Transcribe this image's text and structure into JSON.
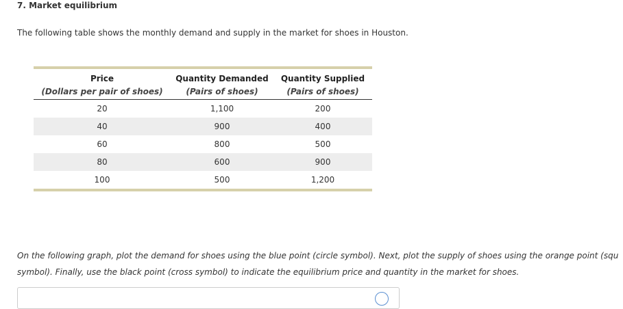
{
  "heading": "7. Market equilibrium",
  "intro": "The following table shows the monthly demand and supply in the market for shoes in Houston.",
  "table": {
    "headers": [
      "Price",
      "Quantity Demanded",
      "Quantity Supplied"
    ],
    "units": [
      "(Dollars per pair of shoes)",
      "(Pairs of shoes)",
      "(Pairs of shoes)"
    ],
    "rows": [
      [
        "20",
        "1,100",
        "200"
      ],
      [
        "40",
        "900",
        "400"
      ],
      [
        "60",
        "800",
        "500"
      ],
      [
        "80",
        "600",
        "900"
      ],
      [
        "100",
        "500",
        "1,200"
      ]
    ]
  },
  "instructions": {
    "line1": "On the following graph, plot the demand for shoes using the blue point (circle symbol). Next, plot the supply of shoes using the orange point (squ",
    "line2": "symbol). Finally, use the black point (cross symbol) to indicate the equilibrium price and quantity in the market for shoes."
  },
  "icons": {
    "help": "help-circle-icon"
  },
  "colors": {
    "table_rule": "#d6d0aa",
    "row_shade": "#ededed",
    "icon_blue": "#5a8fd1"
  }
}
